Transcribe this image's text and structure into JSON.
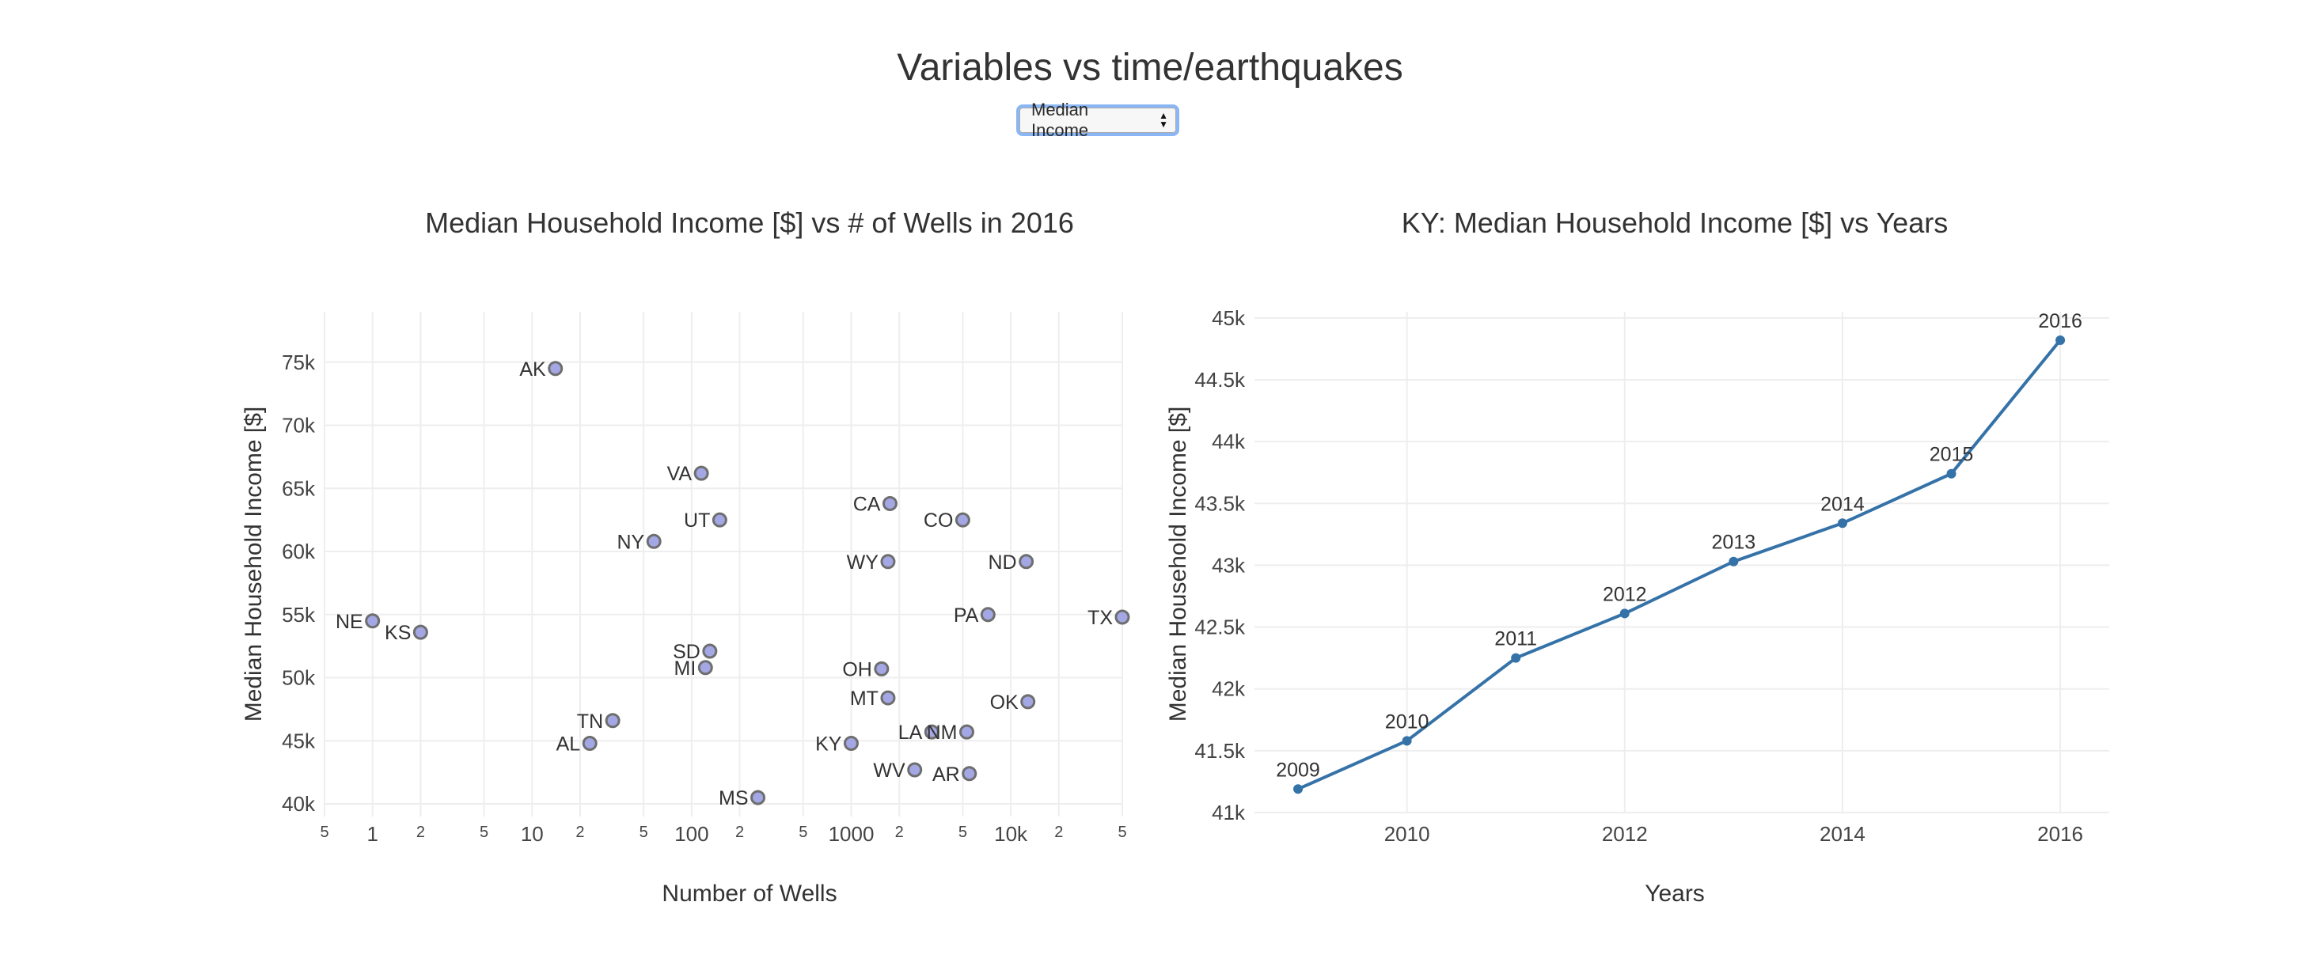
{
  "page": {
    "title": "Variables vs time/earthquakes"
  },
  "dropdown": {
    "selected": "Median Income"
  },
  "chart_data": [
    {
      "type": "scatter",
      "title": "Median Household Income [$] vs # of Wells in 2016",
      "xlabel": "Number of Wells",
      "ylabel": "Median Household Income [$]",
      "xscale": "log",
      "xlim": [
        0.5,
        50000
      ],
      "ylim": [
        39000,
        79000
      ],
      "x_major_ticks": [
        1,
        10,
        100,
        1000,
        10000
      ],
      "x_major_labels": [
        "1",
        "10",
        "100",
        "1000",
        "10k"
      ],
      "x_minor_ticks": [
        0.5,
        2,
        5,
        20,
        50,
        200,
        500,
        2000,
        5000,
        20000,
        50000
      ],
      "x_minor_labels": [
        "5",
        "2",
        "5",
        "2",
        "5",
        "2",
        "5",
        "2",
        "5",
        "2",
        "5"
      ],
      "y_ticks": [
        40000,
        45000,
        50000,
        55000,
        60000,
        65000,
        70000,
        75000
      ],
      "y_tick_labels": [
        "40k",
        "45k",
        "50k",
        "55k",
        "60k",
        "65k",
        "70k",
        "75k"
      ],
      "grid": true,
      "marker_color": "#a3a7e4",
      "marker_edge": "#6e6e6e",
      "points": [
        {
          "label": "AK",
          "x": 14,
          "y": 74500
        },
        {
          "label": "VA",
          "x": 115,
          "y": 66200
        },
        {
          "label": "UT",
          "x": 150,
          "y": 62500
        },
        {
          "label": "NY",
          "x": 58,
          "y": 60800
        },
        {
          "label": "CA",
          "x": 1750,
          "y": 63800
        },
        {
          "label": "CO",
          "x": 5000,
          "y": 62500
        },
        {
          "label": "WY",
          "x": 1700,
          "y": 59200
        },
        {
          "label": "ND",
          "x": 12500,
          "y": 59200
        },
        {
          "label": "PA",
          "x": 7200,
          "y": 55000
        },
        {
          "label": "TX",
          "x": 50000,
          "y": 54800
        },
        {
          "label": "NE",
          "x": 1,
          "y": 54500
        },
        {
          "label": "KS",
          "x": 2,
          "y": 53600
        },
        {
          "label": "SD",
          "x": 130,
          "y": 52100
        },
        {
          "label": "MI",
          "x": 122,
          "y": 50800
        },
        {
          "label": "OH",
          "x": 1550,
          "y": 50700
        },
        {
          "label": "MT",
          "x": 1700,
          "y": 48400
        },
        {
          "label": "OK",
          "x": 12800,
          "y": 48100
        },
        {
          "label": "TN",
          "x": 32,
          "y": 46600
        },
        {
          "label": "AL",
          "x": 23,
          "y": 44800
        },
        {
          "label": "KY",
          "x": 1000,
          "y": 44800
        },
        {
          "label": "LA",
          "x": 3200,
          "y": 45700
        },
        {
          "label": "NM",
          "x": 5300,
          "y": 45700
        },
        {
          "label": "WV",
          "x": 2500,
          "y": 42700
        },
        {
          "label": "AR",
          "x": 5500,
          "y": 42400
        },
        {
          "label": "MS",
          "x": 260,
          "y": 40500
        }
      ]
    },
    {
      "type": "line",
      "title": "KY: Median Household Income [$] vs Years",
      "xlabel": "Years",
      "ylabel": "Median Household Income [$]",
      "xlim": [
        2008.6,
        2016.45
      ],
      "ylim": [
        41000,
        45050
      ],
      "x_ticks": [
        2010,
        2012,
        2014,
        2016
      ],
      "x_tick_labels": [
        "2010",
        "2012",
        "2014",
        "2016"
      ],
      "y_ticks": [
        41000,
        41500,
        42000,
        42500,
        43000,
        43500,
        44000,
        44500,
        45000
      ],
      "y_tick_labels": [
        "41k",
        "41.5k",
        "42k",
        "42.5k",
        "43k",
        "43.5k",
        "44k",
        "44.5k",
        "45k"
      ],
      "grid": true,
      "line_color": "#3572a8",
      "x": [
        2009,
        2010,
        2011,
        2012,
        2013,
        2014,
        2015,
        2016
      ],
      "point_labels": [
        "2009",
        "2010",
        "2011",
        "2012",
        "2013",
        "2014",
        "2015",
        "2016"
      ],
      "values": [
        41190,
        41580,
        42250,
        42610,
        43030,
        43340,
        43740,
        44820
      ]
    }
  ]
}
